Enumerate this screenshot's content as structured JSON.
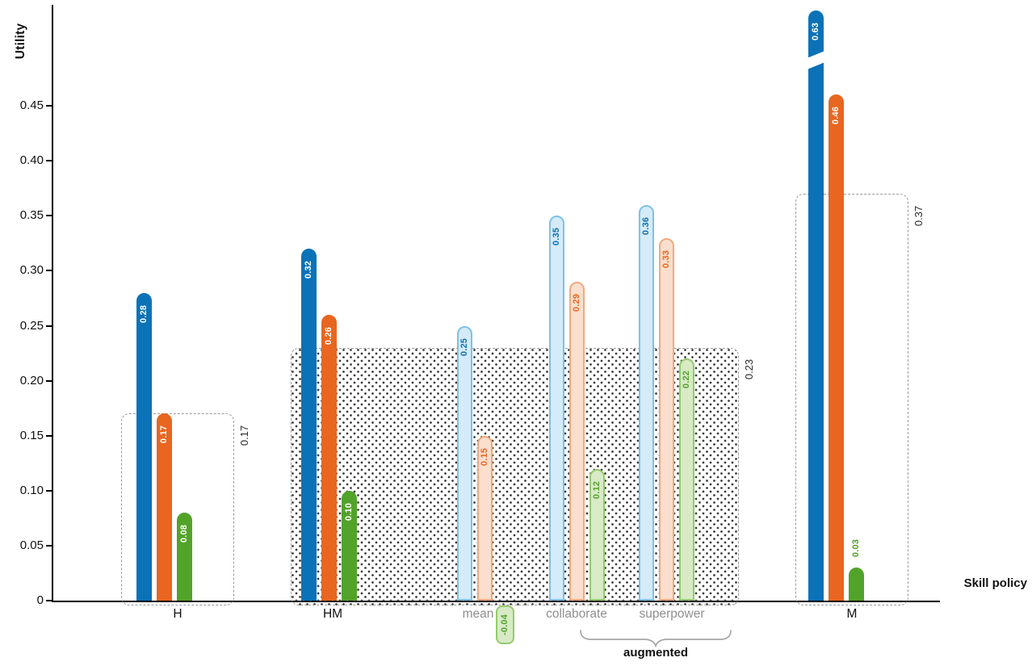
{
  "chart_data": {
    "type": "bar",
    "title": "",
    "ylabel": "Utility",
    "xlabel": "Skill policy",
    "ylim": [
      0,
      0.47
    ],
    "y_ticks": [
      "0",
      "0.05",
      "0.10",
      "0.15",
      "0.20",
      "0.25",
      "0.30",
      "0.35",
      "0.40",
      "0.45"
    ],
    "series": [
      "blue",
      "orange",
      "green"
    ],
    "groups": [
      {
        "label": "H",
        "variant": "solid",
        "values": [
          0.28,
          0.17,
          0.08
        ]
      },
      {
        "label": "HM",
        "variant": "solid",
        "values": [
          0.32,
          0.26,
          0.1
        ]
      },
      {
        "label": "mean",
        "variant": "light",
        "values": [
          0.25,
          0.15,
          -0.04
        ]
      },
      {
        "label": "collaborate",
        "variant": "light",
        "values": [
          0.35,
          0.29,
          0.12
        ]
      },
      {
        "label": "superpower",
        "variant": "light",
        "values": [
          0.36,
          0.33,
          0.22
        ]
      },
      {
        "label": "M",
        "variant": "solid",
        "values": [
          0.63,
          0.46,
          0.03
        ],
        "axis_break_bar": 0
      }
    ],
    "annotation_boxes": [
      {
        "label": "0.17",
        "value": 0.17,
        "fill": "none",
        "covers": [
          "H"
        ]
      },
      {
        "label": "0.23",
        "value": 0.23,
        "fill": "dots",
        "covers": [
          "HM",
          "mean",
          "collaborate",
          "superpower"
        ]
      },
      {
        "label": "0.37",
        "value": 0.37,
        "fill": "none",
        "covers": [
          "M"
        ]
      }
    ],
    "brace": {
      "label": "augmented",
      "covers": [
        "collaborate",
        "superpower"
      ]
    },
    "palette": {
      "solid": {
        "blue": "#0b72b8",
        "orange": "#e8661f",
        "green": "#52a32a"
      },
      "light_fill": {
        "blue": "#d5ebf9",
        "orange": "#fadfce",
        "green": "#d8eac6"
      },
      "light_border": {
        "blue": "#7fc0e8",
        "orange": "#f2a97c",
        "green": "#93ca6d"
      },
      "box_border": "#9b9b9b",
      "muted_text": "#8f8f8f",
      "dot_color": "#3c3c3c",
      "axis_color": "#000000"
    }
  }
}
